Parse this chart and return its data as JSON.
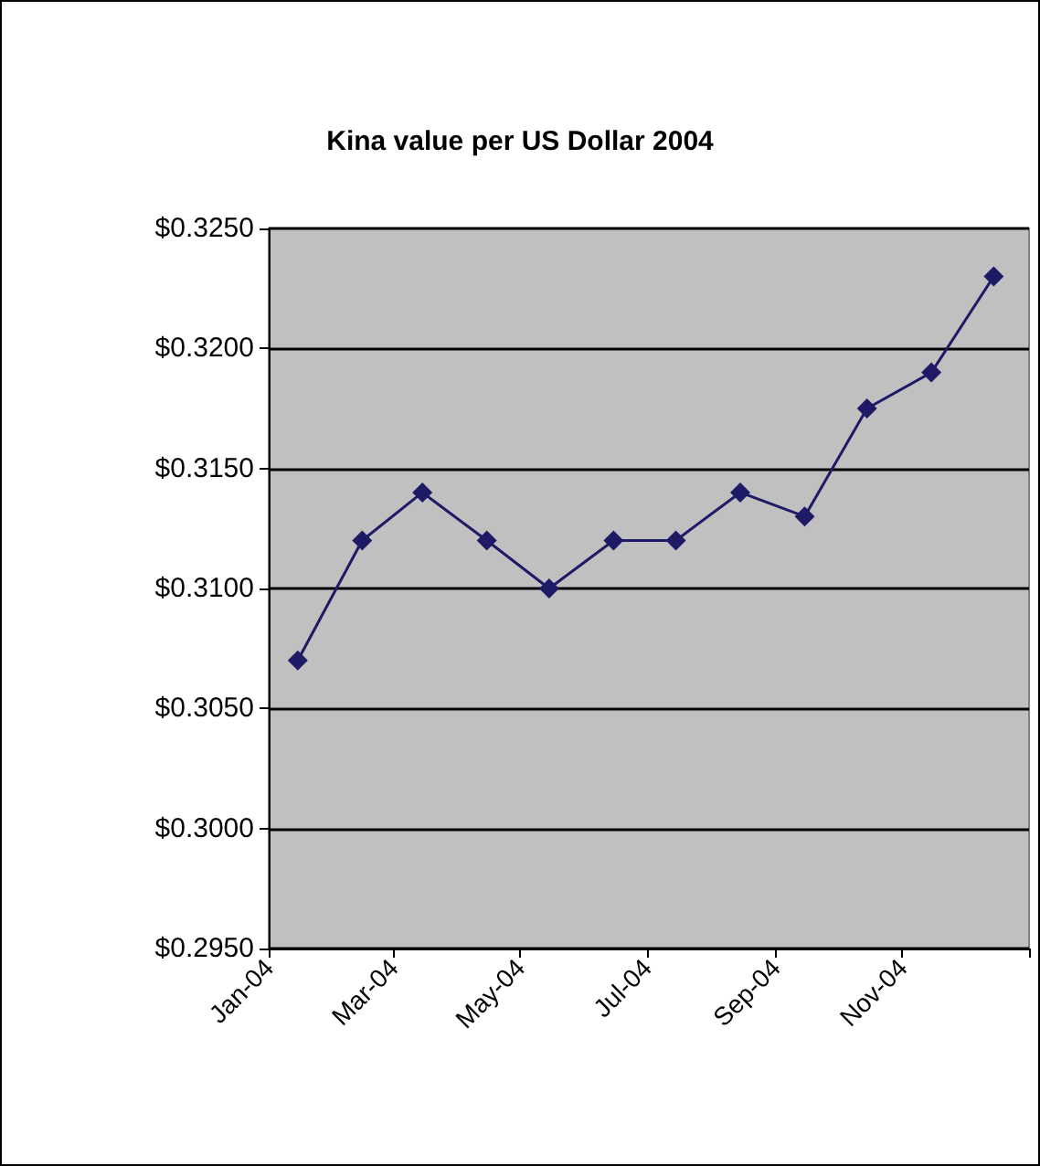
{
  "chart_data": {
    "type": "line",
    "title": "Kina value per US Dollar 2004",
    "x": [
      "2004-01-15",
      "2004-02-15",
      "2004-03-15",
      "2004-04-15",
      "2004-05-15",
      "2004-06-15",
      "2004-07-15",
      "2004-08-15",
      "2004-09-15",
      "2004-10-15",
      "2004-11-15",
      "2004-12-15"
    ],
    "values": [
      0.307,
      0.312,
      0.314,
      0.312,
      0.31,
      0.312,
      0.312,
      0.314,
      0.313,
      0.3175,
      0.319,
      0.323
    ],
    "color": "#1f1a66",
    "marker": "diamond",
    "line_style": "solid",
    "grid": "y",
    "xlim": [
      "2004-01-01",
      "2005-01-01"
    ],
    "xticks": [
      {
        "value": "2004-01-01",
        "label": "Jan-04"
      },
      {
        "value": "2004-03-01",
        "label": "Mar-04"
      },
      {
        "value": "2004-05-01",
        "label": "May-04"
      },
      {
        "value": "2004-07-01",
        "label": "Jul-04"
      },
      {
        "value": "2004-09-01",
        "label": "Sep-04"
      },
      {
        "value": "2004-11-01",
        "label": "Nov-04"
      },
      {
        "value": "2005-01-01",
        "label": null
      }
    ],
    "ylim": [
      0.295,
      0.325
    ],
    "yticks": [
      {
        "value": 0.295,
        "label": "$0.2950"
      },
      {
        "value": 0.3,
        "label": "$0.3000"
      },
      {
        "value": 0.305,
        "label": "$0.3050"
      },
      {
        "value": 0.31,
        "label": "$0.3100"
      },
      {
        "value": 0.315,
        "label": "$0.3150"
      },
      {
        "value": 0.32,
        "label": "$0.3200"
      },
      {
        "value": 0.325,
        "label": "$0.3250"
      }
    ]
  }
}
